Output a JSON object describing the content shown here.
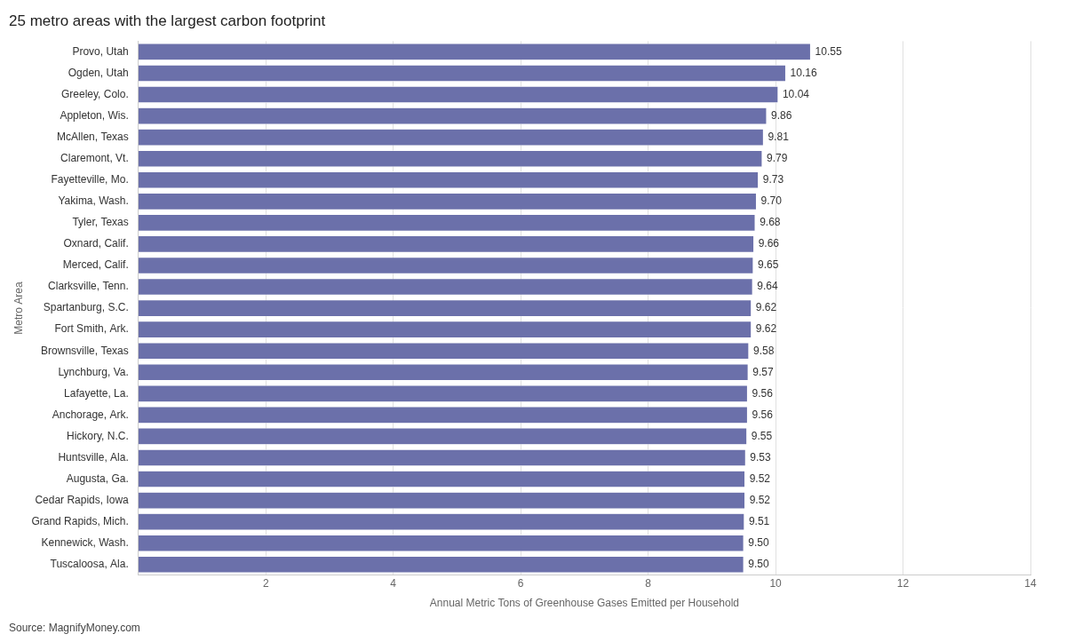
{
  "chart_data": {
    "type": "bar",
    "orientation": "horizontal",
    "title": "25 metro areas with the largest carbon footprint",
    "xlabel": "Annual Metric Tons of Greenhouse Gases Emitted per Household",
    "ylabel": "Metro Area",
    "annotations": [
      "Source: MagnifyMoney.com"
    ],
    "categories": [
      "Tuscaloosa, Ala.",
      "Kennewick, Wash.",
      "Grand Rapids, Mich.",
      "Cedar Rapids, Iowa",
      "Augusta, Ga.",
      "Huntsville, Ala.",
      "Hickory, N.C.",
      "Anchorage, Ark.",
      "Lafayette, La.",
      "Lynchburg, Va.",
      "Brownsville, Texas",
      "Fort Smith, Ark.",
      "Spartanburg, S.C.",
      "Clarksville, Tenn.",
      "Merced, Calif.",
      "Oxnard, Calif.",
      "Tyler, Texas",
      "Yakima, Wash.",
      "Fayetteville, Mo.",
      "Claremont, Vt.",
      "McAllen, Texas",
      "Appleton, Wis.",
      "Greeley, Colo.",
      "Ogden, Utah",
      "Provo, Utah"
    ],
    "values": [
      9.5,
      9.5,
      9.51,
      9.52,
      9.52,
      9.53,
      9.55,
      9.56,
      9.56,
      9.57,
      9.58,
      9.62,
      9.62,
      9.64,
      9.65,
      9.66,
      9.68,
      9.7,
      9.73,
      9.79,
      9.81,
      9.86,
      10.04,
      10.16,
      10.55
    ],
    "value_labels": [
      "9.50",
      "9.50",
      "9.51",
      "9.52",
      "9.52",
      "9.53",
      "9.55",
      "9.56",
      "9.56",
      "9.57",
      "9.58",
      "9.62",
      "9.62",
      "9.64",
      "9.65",
      "9.66",
      "9.68",
      "9.70",
      "9.73",
      "9.79",
      "9.81",
      "9.86",
      "10.04",
      "10.16",
      "10.55"
    ],
    "data_labels": true,
    "color": "#6b70aa",
    "xlim": [
      0,
      14
    ],
    "xticks": [
      2,
      4,
      6,
      8,
      10,
      12,
      14
    ],
    "grid": true
  }
}
